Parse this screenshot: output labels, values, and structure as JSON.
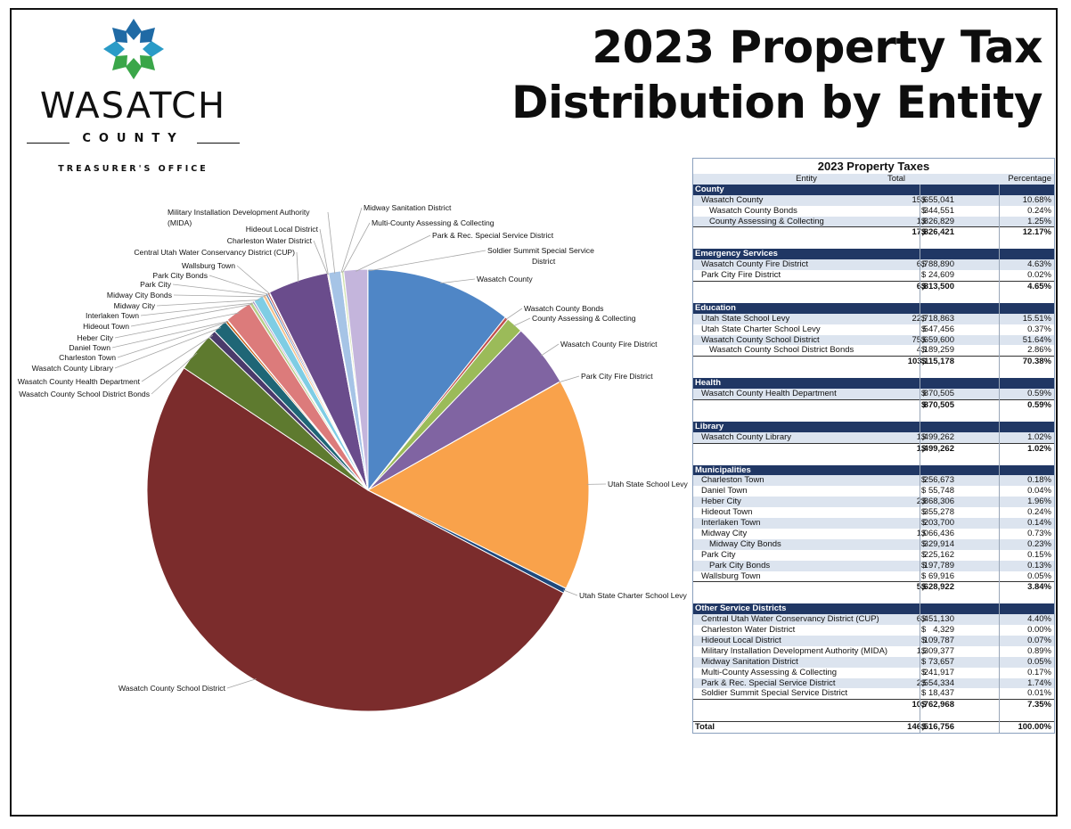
{
  "header": {
    "title_line1": "2023 Property Tax",
    "title_line2": "Distribution by Entity"
  },
  "logo": {
    "name": "WASATCH",
    "county": "COUNTY",
    "office": "TREASURER'S OFFICE",
    "colors": [
      "#1f6aa5",
      "#3aa649",
      "#2a9bc7"
    ]
  },
  "chart_data": {
    "type": "pie",
    "title": "",
    "start": "12 o'clock",
    "direction": "clockwise",
    "slices": [
      {
        "label": "Wasatch County",
        "value": 15655041,
        "color": "#4f86c6"
      },
      {
        "label": "Wasatch County Bonds",
        "value": 344551,
        "color": "#c0504d"
      },
      {
        "label": "County Assessing & Collecting",
        "value": 1826829,
        "color": "#9bbb59"
      },
      {
        "label": "Wasatch County Fire District",
        "value": 6788890,
        "color": "#8064a2"
      },
      {
        "label": "Park City Fire District",
        "value": 24609,
        "color": "#4bacc6"
      },
      {
        "label": "Utah State School Levy",
        "value": 22718863,
        "color": "#f9a24b"
      },
      {
        "label": "Utah State Charter School Levy",
        "value": 547456,
        "color": "#1f497d"
      },
      {
        "label": "Wasatch County School District",
        "value": 75659600,
        "color": "#7b2c2c"
      },
      {
        "label": "Wasatch County School District Bonds",
        "value": 4189259,
        "color": "#5e7a2f"
      },
      {
        "label": "Wasatch County Health Department",
        "value": 870505,
        "color": "#4a3a6b"
      },
      {
        "label": "Wasatch County Library",
        "value": 1499262,
        "color": "#1f6676"
      },
      {
        "label": "Charleston Town",
        "value": 256673,
        "color": "#c55a11"
      },
      {
        "label": "Daniel Town",
        "value": 55748,
        "color": "#254a7a"
      },
      {
        "label": "Heber City",
        "value": 2868306,
        "color": "#dc7b7b"
      },
      {
        "label": "Hideout Town",
        "value": 355278,
        "color": "#b6cf8a"
      },
      {
        "label": "Interlaken Town",
        "value": 203700,
        "color": "#9c8cc0"
      },
      {
        "label": "Midway City",
        "value": 1066436,
        "color": "#7fcde4"
      },
      {
        "label": "Midway City Bonds",
        "value": 329914,
        "color": "#f7c08a"
      },
      {
        "label": "Park City",
        "value": 225162,
        "color": "#5a86b8"
      },
      {
        "label": "Park City Bonds",
        "value": 197789,
        "color": "#b34a48"
      },
      {
        "label": "Wallsburg Town",
        "value": 69916,
        "color": "#8aa34e"
      },
      {
        "label": "Central Utah Water Conservancy District (CUP)",
        "value": 6451130,
        "color": "#6a4c8c"
      },
      {
        "label": "Charleston Water District",
        "value": 4329,
        "color": "#3b9ab5"
      },
      {
        "label": "Hideout Local District",
        "value": 109787,
        "color": "#ed8c2b"
      },
      {
        "label": "Military Installation Development Authority (MIDA)",
        "value": 1309377,
        "color": "#a6c4e6"
      },
      {
        "label": "Midway Sanitation District",
        "value": 73657,
        "color": "#e6a7a6"
      },
      {
        "label": "Multi-County Assessing & Collecting",
        "value": 241917,
        "color": "#cfe0ad"
      },
      {
        "label": "Park & Rec. Special Service District",
        "value": 2554334,
        "color": "#c4b5dc"
      },
      {
        "label": "Soldier Summit Special Service District",
        "value": 18437,
        "color": "#9ed9ea"
      }
    ],
    "labels": {
      "l0": "Wasatch County",
      "l1": "Wasatch County Bonds",
      "l2": "County Assessing & Collecting",
      "l3": "Wasatch County Fire District",
      "l4": "Park City Fire District",
      "l5": "Utah State School Levy",
      "l6": "Utah State Charter School Levy",
      "l7": "Wasatch County School District",
      "l8": "Wasatch County School District Bonds",
      "l9": "Wasatch County Health Department",
      "l10": "Wasatch County Library",
      "l11": "Charleston Town",
      "l12": "Daniel Town",
      "l13": "Heber City",
      "l14": "Hideout Town",
      "l15": "Interlaken Town",
      "l16": "Midway City",
      "l17": "Midway City Bonds",
      "l18": "Park City",
      "l19": "Park City Bonds",
      "l20": "Wallsburg Town",
      "l21": "Central Utah Water Conservancy District (CUP)",
      "l22": "Charleston Water District",
      "l23": "Hideout Local District",
      "l24a": "Military Installation Development Authority",
      "l24b": "(MIDA)",
      "l25": "Midway Sanitation District",
      "l26": "Multi-County Assessing & Collecting",
      "l27": "Park & Rec. Special Service District",
      "l28a": "Soldier Summit Special Service",
      "l28b": "District"
    }
  },
  "table": {
    "title": "2023 Property Taxes",
    "col_entity": "Entity",
    "col_total": "Total",
    "col_pct": "Percentage",
    "sections": [
      {
        "name": "County",
        "rows": [
          {
            "name": "Wasatch County",
            "amount": "15,655,041",
            "pct": "10.68%"
          },
          {
            "name": "Wasatch County Bonds",
            "amount": "344,551",
            "pct": "0.24%",
            "indent": true
          },
          {
            "name": "County Assessing & Collecting",
            "amount": "1,826,829",
            "pct": "1.25%",
            "indent": true
          }
        ],
        "subtotal": {
          "amount": "17,826,421",
          "pct": "12.17%"
        }
      },
      {
        "name": "Emergency Services",
        "rows": [
          {
            "name": "Wasatch County Fire District",
            "amount": "6,788,890",
            "pct": "4.63%"
          },
          {
            "name": "Park City Fire District",
            "amount": "24,609",
            "pct": "0.02%"
          }
        ],
        "subtotal": {
          "amount": "6,813,500",
          "pct": "4.65%"
        }
      },
      {
        "name": "Education",
        "rows": [
          {
            "name": "Utah State School Levy",
            "amount": "22,718,863",
            "pct": "15.51%"
          },
          {
            "name": "Utah State Charter School Levy",
            "amount": "547,456",
            "pct": "0.37%"
          },
          {
            "name": "Wasatch County School District",
            "amount": "75,659,600",
            "pct": "51.64%"
          },
          {
            "name": "Wasatch County School District Bonds",
            "amount": "4,189,259",
            "pct": "2.86%",
            "indent": true
          }
        ],
        "subtotal": {
          "amount": "103,115,178",
          "pct": "70.38%"
        }
      },
      {
        "name": "Health",
        "rows": [
          {
            "name": "Wasatch County Health Department",
            "amount": "870,505",
            "pct": "0.59%"
          }
        ],
        "subtotal": {
          "amount": "870,505",
          "pct": "0.59%"
        }
      },
      {
        "name": "Library",
        "rows": [
          {
            "name": "Wasatch County Library",
            "amount": "1,499,262",
            "pct": "1.02%"
          }
        ],
        "subtotal": {
          "amount": "1,499,262",
          "pct": "1.02%"
        }
      },
      {
        "name": "Municipalities",
        "rows": [
          {
            "name": "Charleston Town",
            "amount": "256,673",
            "pct": "0.18%"
          },
          {
            "name": "Daniel Town",
            "amount": "55,748",
            "pct": "0.04%"
          },
          {
            "name": "Heber City",
            "amount": "2,868,306",
            "pct": "1.96%"
          },
          {
            "name": "Hideout Town",
            "amount": "355,278",
            "pct": "0.24%"
          },
          {
            "name": "Interlaken Town",
            "amount": "203,700",
            "pct": "0.14%"
          },
          {
            "name": "Midway City",
            "amount": "1,066,436",
            "pct": "0.73%"
          },
          {
            "name": "Midway City Bonds",
            "amount": "329,914",
            "pct": "0.23%",
            "indent": true
          },
          {
            "name": "Park City",
            "amount": "225,162",
            "pct": "0.15%"
          },
          {
            "name": "Park City Bonds",
            "amount": "197,789",
            "pct": "0.13%",
            "indent": true
          },
          {
            "name": "Wallsburg Town",
            "amount": "69,916",
            "pct": "0.05%"
          }
        ],
        "subtotal": {
          "amount": "5,628,922",
          "pct": "3.84%"
        }
      },
      {
        "name": "Other Service Districts",
        "rows": [
          {
            "name": "Central Utah Water Conservancy District (CUP)",
            "amount": "6,451,130",
            "pct": "4.40%"
          },
          {
            "name": "Charleston Water District",
            "amount": "4,329",
            "pct": "0.00%"
          },
          {
            "name": "Hideout Local District",
            "amount": "109,787",
            "pct": "0.07%"
          },
          {
            "name": "Military Installation Development Authority (MIDA)",
            "amount": "1,309,377",
            "pct": "0.89%"
          },
          {
            "name": "Midway Sanitation District",
            "amount": "73,657",
            "pct": "0.05%"
          },
          {
            "name": "Multi-County Assessing & Collecting",
            "amount": "241,917",
            "pct": "0.17%"
          },
          {
            "name": "Park & Rec. Special Service District",
            "amount": "2,554,334",
            "pct": "1.74%"
          },
          {
            "name": "Soldier Summit Special Service District",
            "amount": "18,437",
            "pct": "0.01%"
          }
        ],
        "subtotal": {
          "amount": "10,762,968",
          "pct": "7.35%"
        }
      }
    ],
    "total": {
      "label": "Total",
      "amount": "146,516,756",
      "pct": "100.00%"
    },
    "dollar": "$",
    "colors": {
      "section": "#203764",
      "alt_row": "#dce4ef"
    }
  }
}
